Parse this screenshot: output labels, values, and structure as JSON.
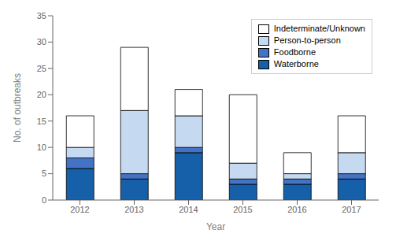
{
  "chart_data": {
    "type": "bar",
    "stacked": true,
    "categories": [
      "2012",
      "2013",
      "2014",
      "2015",
      "2016",
      "2017"
    ],
    "series": [
      {
        "name": "Waterborne",
        "color": "#1560a8",
        "values": [
          6,
          4,
          9,
          3,
          3,
          4
        ]
      },
      {
        "name": "Foodborne",
        "color": "#4472c4",
        "values": [
          2,
          1,
          1,
          1,
          1,
          1
        ]
      },
      {
        "name": "Person-to-person",
        "color": "#c5d9f1",
        "values": [
          2,
          12,
          6,
          3,
          1,
          4
        ]
      },
      {
        "name": "Indeterminate/Unknown",
        "color": "#ffffff",
        "values": [
          6,
          12,
          5,
          13,
          4,
          7
        ]
      }
    ],
    "xlabel": "Year",
    "ylabel": "No. of outbreaks",
    "ylim": [
      0,
      35
    ],
    "yticks": [
      0,
      5,
      10,
      15,
      20,
      25,
      30,
      35
    ],
    "grid": false,
    "legend": "upper right"
  }
}
